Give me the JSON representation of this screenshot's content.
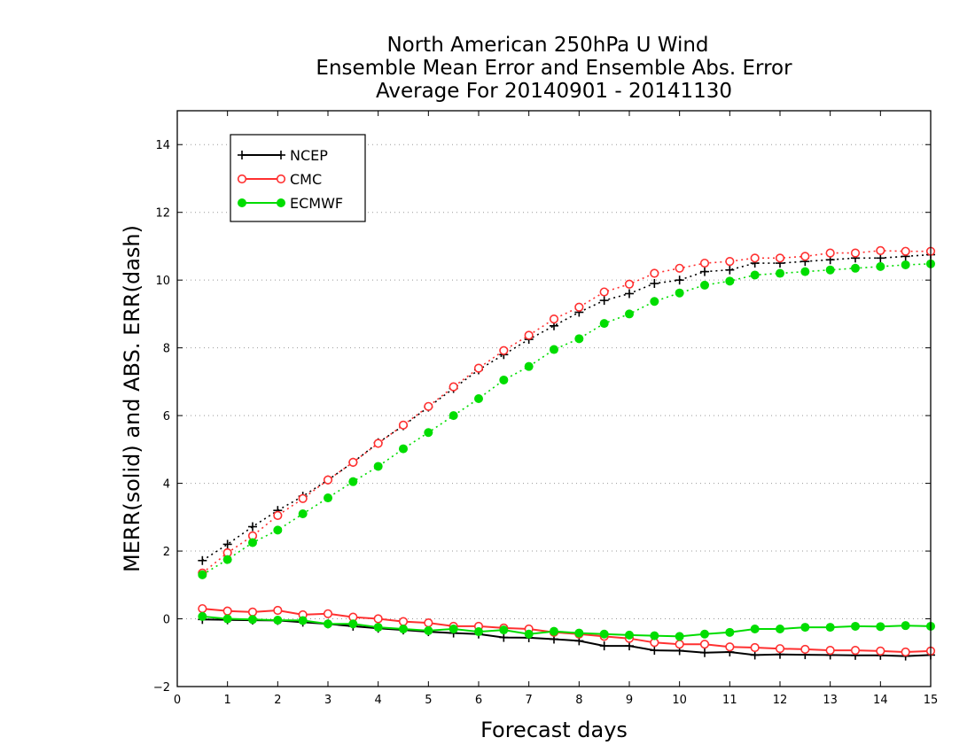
{
  "chart_data": {
    "type": "line",
    "title": [
      "North American 250hPa U Wind",
      "Ensemble Mean Error and Ensemble Abs. Error",
      "Average For 20140901 - 20141130"
    ],
    "xlabel": "Forecast days",
    "ylabel": "MERR(solid) and ABS. ERR(dash)",
    "xlim": [
      0,
      15
    ],
    "ylim": [
      -2,
      15
    ],
    "xticks": [
      0,
      1,
      2,
      3,
      4,
      5,
      6,
      7,
      8,
      9,
      10,
      11,
      12,
      13,
      14,
      15
    ],
    "yticks": [
      -2,
      0,
      2,
      4,
      6,
      8,
      10,
      12,
      14
    ],
    "grid": "horizontal dotted",
    "legend_position": "top-left",
    "x": [
      0.5,
      1,
      1.5,
      2,
      2.5,
      3,
      3.5,
      4,
      4.5,
      5,
      5.5,
      6,
      6.5,
      7,
      7.5,
      8,
      8.5,
      9,
      9.5,
      10,
      10.5,
      11,
      11.5,
      12,
      12.5,
      13,
      13.5,
      14,
      14.5,
      15
    ],
    "series": [
      {
        "name": "NCEP",
        "color": "#000000",
        "marker": "plus",
        "abs_error": [
          1.72,
          2.2,
          2.72,
          3.2,
          3.62,
          4.1,
          4.62,
          5.2,
          5.7,
          6.25,
          6.8,
          7.35,
          7.8,
          8.25,
          8.65,
          9.05,
          9.4,
          9.6,
          9.9,
          10.0,
          10.25,
          10.3,
          10.5,
          10.5,
          10.55,
          10.6,
          10.65,
          10.65,
          10.7,
          10.75
        ],
        "mean_error": [
          -0.02,
          -0.03,
          -0.04,
          -0.05,
          -0.1,
          -0.15,
          -0.22,
          -0.28,
          -0.33,
          -0.38,
          -0.42,
          -0.45,
          -0.55,
          -0.56,
          -0.6,
          -0.65,
          -0.8,
          -0.8,
          -0.93,
          -0.94,
          -1.0,
          -0.98,
          -1.07,
          -1.05,
          -1.06,
          -1.07,
          -1.08,
          -1.08,
          -1.1,
          -1.07
        ]
      },
      {
        "name": "CMC",
        "color": "#ff3030",
        "marker": "open-circle",
        "abs_error": [
          1.35,
          1.95,
          2.45,
          3.05,
          3.55,
          4.1,
          4.62,
          5.18,
          5.72,
          6.27,
          6.85,
          7.4,
          7.92,
          8.37,
          8.85,
          9.2,
          9.65,
          9.88,
          10.2,
          10.35,
          10.5,
          10.55,
          10.65,
          10.65,
          10.7,
          10.8,
          10.8,
          10.87,
          10.85,
          10.85
        ],
        "mean_error": [
          0.3,
          0.23,
          0.2,
          0.25,
          0.12,
          0.15,
          0.05,
          0.0,
          -0.08,
          -0.12,
          -0.22,
          -0.22,
          -0.27,
          -0.3,
          -0.4,
          -0.45,
          -0.52,
          -0.58,
          -0.7,
          -0.75,
          -0.75,
          -0.83,
          -0.85,
          -0.88,
          -0.9,
          -0.93,
          -0.93,
          -0.95,
          -0.98,
          -0.95
        ]
      },
      {
        "name": "ECMWF",
        "color": "#00dd00",
        "marker": "filled-circle",
        "abs_error": [
          1.3,
          1.75,
          2.25,
          2.62,
          3.1,
          3.57,
          4.05,
          4.5,
          5.02,
          5.5,
          6.0,
          6.5,
          7.05,
          7.45,
          7.95,
          8.27,
          8.72,
          9.0,
          9.37,
          9.62,
          9.85,
          9.97,
          10.15,
          10.2,
          10.25,
          10.3,
          10.35,
          10.4,
          10.45,
          10.48
        ],
        "mean_error": [
          0.07,
          0.0,
          -0.02,
          -0.04,
          -0.05,
          -0.15,
          -0.15,
          -0.25,
          -0.3,
          -0.35,
          -0.3,
          -0.38,
          -0.33,
          -0.45,
          -0.37,
          -0.42,
          -0.45,
          -0.48,
          -0.5,
          -0.52,
          -0.45,
          -0.4,
          -0.3,
          -0.3,
          -0.25,
          -0.25,
          -0.22,
          -0.23,
          -0.2,
          -0.22
        ]
      }
    ]
  }
}
